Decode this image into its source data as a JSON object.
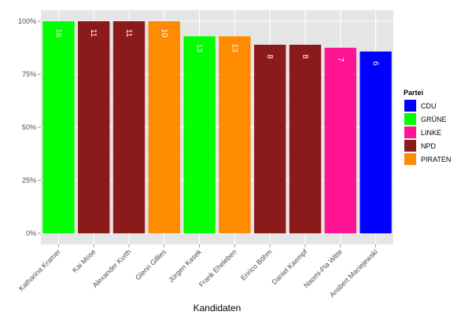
{
  "chart_data": {
    "type": "bar",
    "categories": [
      "Katharina Kramer",
      "Kai Mose",
      "Alexander Kurth",
      "Glenn Gillies",
      "Jürgen Kasek",
      "Frank Eheleben",
      "Enrico Böhm",
      "Daniel Kaempf",
      "Naomi-Pia Witte",
      "Ansbert Maciejewski"
    ],
    "values": [
      1.0,
      1.0,
      1.0,
      1.0,
      0.929,
      0.929,
      0.889,
      0.889,
      0.875,
      0.857
    ],
    "bar_labels": [
      "16",
      "11",
      "11",
      "10",
      "13",
      "13",
      "8",
      "8",
      "7",
      "6"
    ],
    "bar_party": [
      "GRÜNE",
      "NPD",
      "NPD",
      "PIRATEN",
      "GRÜNE",
      "PIRATEN",
      "NPD",
      "NPD",
      "LINKE",
      "CDU"
    ],
    "y_ticks": [
      0,
      0.25,
      0.5,
      0.75,
      1.0
    ],
    "y_tick_labels": [
      "0%",
      "25%",
      "50%",
      "75%",
      "100%"
    ],
    "ylim": [
      0,
      1.0
    ],
    "xlabel": "Kandidaten",
    "ylabel": "",
    "grid": true,
    "legend": {
      "title": "Partei",
      "placement": "right",
      "items": [
        {
          "name": "CDU",
          "color": "#0000ff"
        },
        {
          "name": "GRÜNE",
          "color": "#00ff00"
        },
        {
          "name": "LINKE",
          "color": "#ff1493"
        },
        {
          "name": "NPD",
          "color": "#8b1a1a"
        },
        {
          "name": "PIRATEN",
          "color": "#ff8c00"
        }
      ]
    }
  }
}
